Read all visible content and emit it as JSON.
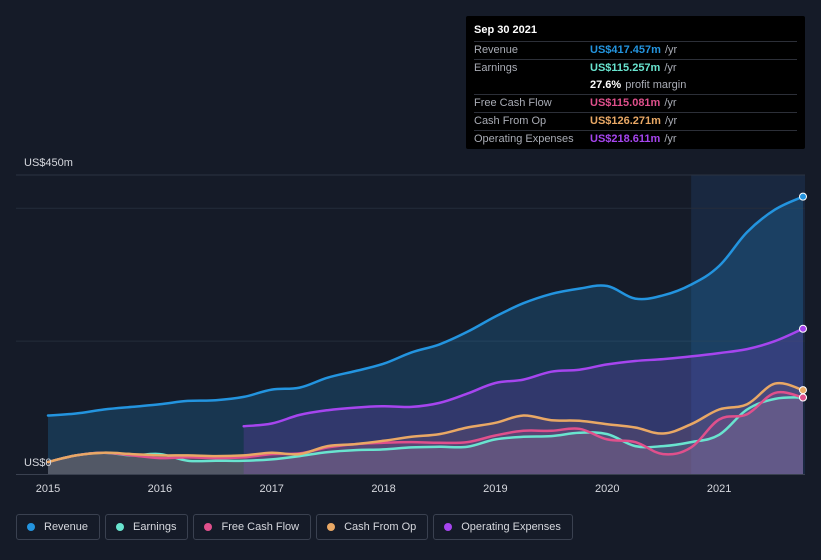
{
  "tooltip": {
    "date": "Sep 30 2021",
    "rows": [
      {
        "label": "Revenue",
        "value": "US$417.457m",
        "unit": "/yr",
        "color": "#2394df"
      },
      {
        "label": "Earnings",
        "value": "US$115.257m",
        "unit": "/yr",
        "color": "#69e4cf"
      },
      {
        "label": "",
        "value": "27.6%",
        "unit": "profit margin",
        "color": "#ffffff"
      },
      {
        "label": "Free Cash Flow",
        "value": "US$115.081m",
        "unit": "/yr",
        "color": "#e0508c"
      },
      {
        "label": "Cash From Op",
        "value": "US$126.271m",
        "unit": "/yr",
        "color": "#e9a865"
      },
      {
        "label": "Operating Expenses",
        "value": "US$218.611m",
        "unit": "/yr",
        "color": "#a645ef"
      }
    ]
  },
  "legend": [
    {
      "label": "Revenue",
      "color": "#2394df"
    },
    {
      "label": "Earnings",
      "color": "#69e4cf"
    },
    {
      "label": "Free Cash Flow",
      "color": "#e0508c"
    },
    {
      "label": "Cash From Op",
      "color": "#e9a865"
    },
    {
      "label": "Operating Expenses",
      "color": "#a645ef"
    }
  ],
  "chart_data": {
    "type": "area",
    "title": "",
    "xlabel": "",
    "ylabel": "",
    "y_top_label": "US$450m",
    "y_bottom_label": "US$0",
    "ylim": [
      0,
      450
    ],
    "xlim": [
      2015.0,
      2021.75
    ],
    "x_ticks": [
      "2015",
      "2016",
      "2017",
      "2018",
      "2019",
      "2020",
      "2021"
    ],
    "grid": true,
    "highlight_from": 2020.75,
    "series": [
      {
        "name": "Revenue",
        "color": "#2394df",
        "points": [
          [
            2015.0,
            88
          ],
          [
            2015.25,
            91
          ],
          [
            2015.5,
            97
          ],
          [
            2015.75,
            101
          ],
          [
            2016.0,
            105
          ],
          [
            2016.25,
            110
          ],
          [
            2016.5,
            111
          ],
          [
            2016.75,
            116
          ],
          [
            2017.0,
            127
          ],
          [
            2017.25,
            130
          ],
          [
            2017.5,
            145
          ],
          [
            2017.75,
            155
          ],
          [
            2018.0,
            166
          ],
          [
            2018.25,
            183
          ],
          [
            2018.5,
            195
          ],
          [
            2018.75,
            214
          ],
          [
            2019.0,
            237
          ],
          [
            2019.25,
            257
          ],
          [
            2019.5,
            271
          ],
          [
            2019.75,
            279
          ],
          [
            2020.0,
            283
          ],
          [
            2020.25,
            264
          ],
          [
            2020.5,
            269
          ],
          [
            2020.75,
            285
          ],
          [
            2021.0,
            313
          ],
          [
            2021.25,
            364
          ],
          [
            2021.5,
            398
          ],
          [
            2021.75,
            417.457
          ]
        ]
      },
      {
        "name": "Earnings",
        "color": "#69e4cf",
        "points": [
          [
            2015.0,
            18
          ],
          [
            2015.25,
            28
          ],
          [
            2015.5,
            32
          ],
          [
            2015.75,
            28
          ],
          [
            2016.0,
            30
          ],
          [
            2016.25,
            20
          ],
          [
            2016.5,
            20
          ],
          [
            2016.75,
            20
          ],
          [
            2017.0,
            22
          ],
          [
            2017.25,
            27
          ],
          [
            2017.5,
            33
          ],
          [
            2017.75,
            36
          ],
          [
            2018.0,
            37
          ],
          [
            2018.25,
            40
          ],
          [
            2018.5,
            41
          ],
          [
            2018.75,
            41
          ],
          [
            2019.0,
            52
          ],
          [
            2019.25,
            56
          ],
          [
            2019.5,
            57
          ],
          [
            2019.75,
            62
          ],
          [
            2020.0,
            60
          ],
          [
            2020.25,
            42
          ],
          [
            2020.5,
            42
          ],
          [
            2020.75,
            48
          ],
          [
            2021.0,
            59
          ],
          [
            2021.25,
            97
          ],
          [
            2021.5,
            113
          ],
          [
            2021.75,
            115.257
          ]
        ]
      },
      {
        "name": "Free Cash Flow",
        "color": "#e0508c",
        "points": [
          [
            2015.0,
            18
          ],
          [
            2015.25,
            28
          ],
          [
            2015.5,
            32
          ],
          [
            2015.75,
            28
          ],
          [
            2016.0,
            24
          ],
          [
            2016.25,
            25
          ],
          [
            2016.5,
            24
          ],
          [
            2016.75,
            25
          ],
          [
            2017.0,
            30
          ],
          [
            2017.25,
            31
          ],
          [
            2017.5,
            40
          ],
          [
            2017.75,
            45
          ],
          [
            2018.0,
            47
          ],
          [
            2018.25,
            48
          ],
          [
            2018.5,
            47
          ],
          [
            2018.75,
            48
          ],
          [
            2019.0,
            58
          ],
          [
            2019.25,
            65
          ],
          [
            2019.5,
            65
          ],
          [
            2019.75,
            68
          ],
          [
            2020.0,
            52
          ],
          [
            2020.25,
            48
          ],
          [
            2020.5,
            30
          ],
          [
            2020.75,
            40
          ],
          [
            2021.0,
            82
          ],
          [
            2021.25,
            90
          ],
          [
            2021.5,
            122
          ],
          [
            2021.75,
            115.081
          ]
        ]
      },
      {
        "name": "Cash From Op",
        "color": "#e9a865",
        "points": [
          [
            2015.0,
            18
          ],
          [
            2015.25,
            28
          ],
          [
            2015.5,
            32
          ],
          [
            2015.75,
            30
          ],
          [
            2016.0,
            28
          ],
          [
            2016.25,
            28
          ],
          [
            2016.5,
            27
          ],
          [
            2016.75,
            28
          ],
          [
            2017.0,
            32
          ],
          [
            2017.25,
            30
          ],
          [
            2017.5,
            42
          ],
          [
            2017.75,
            45
          ],
          [
            2018.0,
            50
          ],
          [
            2018.25,
            56
          ],
          [
            2018.5,
            60
          ],
          [
            2018.75,
            70
          ],
          [
            2019.0,
            77
          ],
          [
            2019.25,
            88
          ],
          [
            2019.5,
            81
          ],
          [
            2019.75,
            80
          ],
          [
            2020.0,
            75
          ],
          [
            2020.25,
            70
          ],
          [
            2020.5,
            61
          ],
          [
            2020.75,
            75
          ],
          [
            2021.0,
            97
          ],
          [
            2021.25,
            105
          ],
          [
            2021.5,
            136
          ],
          [
            2021.75,
            126.271
          ]
        ]
      },
      {
        "name": "Operating Expenses",
        "color": "#a645ef",
        "points": [
          [
            2016.75,
            72
          ],
          [
            2017.0,
            76
          ],
          [
            2017.25,
            89
          ],
          [
            2017.5,
            96
          ],
          [
            2017.75,
            100
          ],
          [
            2018.0,
            102
          ],
          [
            2018.25,
            101
          ],
          [
            2018.5,
            107
          ],
          [
            2018.75,
            121
          ],
          [
            2019.0,
            137
          ],
          [
            2019.25,
            142
          ],
          [
            2019.5,
            154
          ],
          [
            2019.75,
            157
          ],
          [
            2020.0,
            165
          ],
          [
            2020.25,
            170
          ],
          [
            2020.5,
            173
          ],
          [
            2020.75,
            177
          ],
          [
            2021.0,
            182
          ],
          [
            2021.25,
            188
          ],
          [
            2021.5,
            200
          ],
          [
            2021.75,
            218.611
          ]
        ]
      }
    ]
  }
}
